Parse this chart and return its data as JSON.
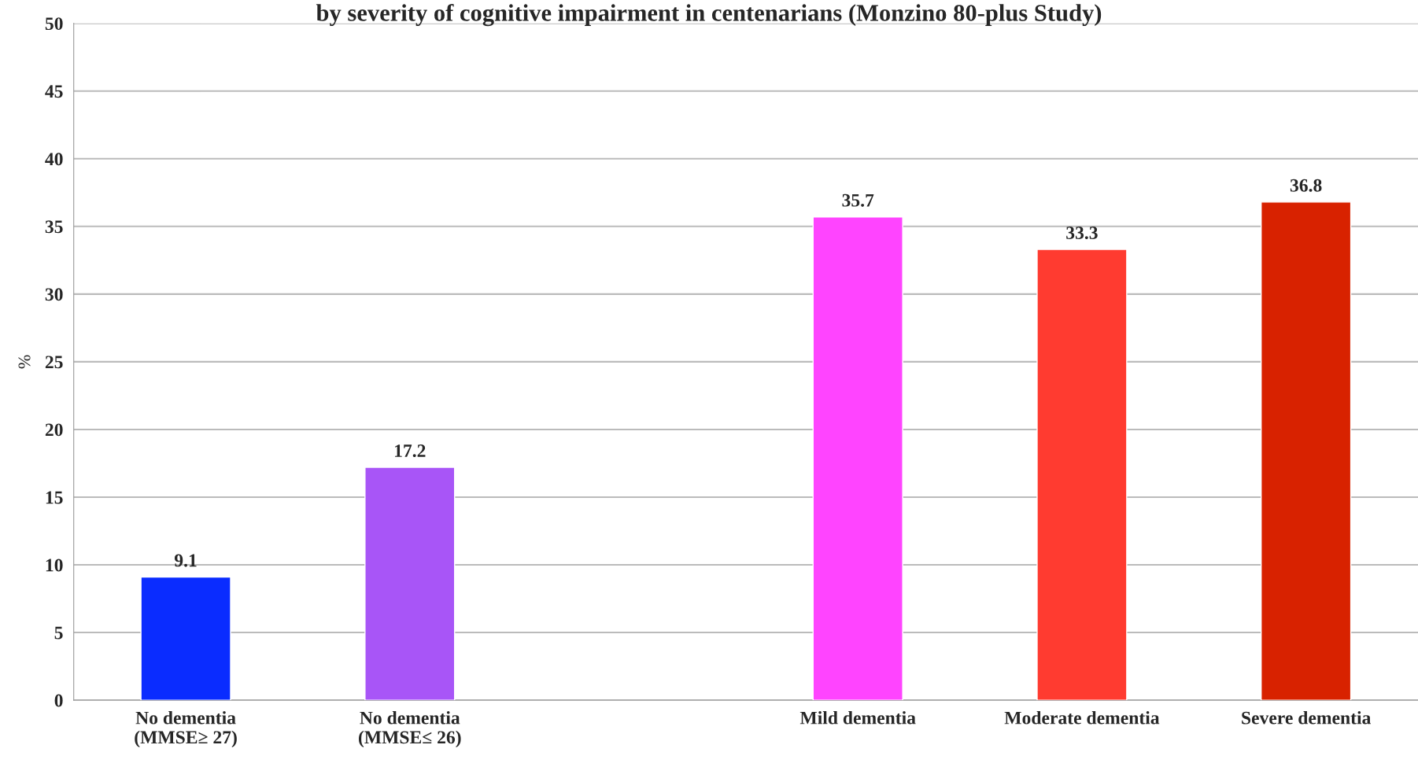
{
  "chart_data": {
    "type": "bar",
    "title": "by severity of cognitive impairment in centenarians (Monzino 80-plus Study)",
    "ylabel": "%",
    "categories": [
      "No dementia\n(MMSE≥ 27)",
      "No dementia\n(MMSE≤ 26)",
      null,
      "Mild dementia",
      "Moderate dementia",
      "Severe dementia"
    ],
    "values": [
      9.1,
      17.2,
      null,
      35.7,
      33.3,
      36.8
    ],
    "colors": [
      "#0a2cff",
      "#a855f7",
      "#888888",
      "#ff44ff",
      "#ff3b30",
      "#d82200"
    ],
    "ylim": [
      0,
      50
    ],
    "yticks": [
      0,
      5,
      10,
      15,
      20,
      25,
      30,
      35,
      40,
      45,
      50
    ],
    "grid": "y",
    "data_labels": true
  }
}
